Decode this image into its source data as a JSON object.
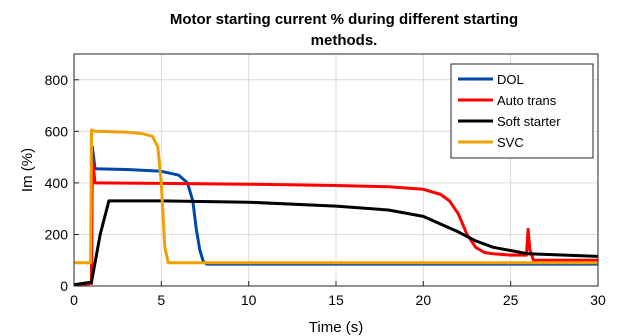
{
  "chart_data": {
    "type": "line",
    "title_lines": [
      "Motor starting current % during different starting",
      "methods."
    ],
    "xlabel": "Time (s)",
    "ylabel": "Im (%)",
    "xlim": [
      0,
      30
    ],
    "ylim": [
      0,
      900
    ],
    "xticks": [
      0,
      5,
      10,
      15,
      20,
      25,
      30
    ],
    "yticks": [
      0,
      200,
      400,
      600,
      800
    ],
    "grid": true,
    "legend_position": "top-right",
    "series": [
      {
        "name": "DOL",
        "color": "#0047ab",
        "x": [
          0,
          1.0,
          1.05,
          1.2,
          3,
          5,
          6,
          6.5,
          6.8,
          7.0,
          7.2,
          7.4,
          7.6,
          30
        ],
        "y": [
          5,
          10,
          540,
          455,
          452,
          445,
          430,
          400,
          330,
          220,
          140,
          95,
          85,
          85
        ]
      },
      {
        "name": "Auto trans",
        "color": "#ff0000",
        "x": [
          0,
          1.0,
          1.05,
          1.2,
          5,
          10,
          15,
          18,
          20,
          21,
          21.5,
          22,
          22.5,
          23,
          23.5,
          24,
          25,
          25.9,
          26.0,
          26.1,
          26.3,
          30
        ],
        "y": [
          5,
          10,
          500,
          400,
          398,
          395,
          390,
          385,
          375,
          355,
          330,
          280,
          200,
          150,
          130,
          125,
          120,
          120,
          220,
          140,
          100,
          100
        ]
      },
      {
        "name": "Soft starter",
        "color": "#000000",
        "x": [
          0,
          1.0,
          1.5,
          2.0,
          5,
          10,
          15,
          18,
          20,
          21,
          22,
          23,
          24,
          26,
          30
        ],
        "y": [
          5,
          15,
          200,
          330,
          330,
          325,
          310,
          295,
          270,
          240,
          210,
          175,
          150,
          125,
          115
        ]
      },
      {
        "name": "SVC",
        "color": "#f0a000",
        "x": [
          0,
          0.95,
          1.0,
          1.2,
          3,
          4,
          4.5,
          4.8,
          5.0,
          5.2,
          5.4,
          30
        ],
        "y": [
          90,
          90,
          605,
          600,
          597,
          590,
          580,
          540,
          400,
          150,
          90,
          90
        ]
      }
    ]
  }
}
